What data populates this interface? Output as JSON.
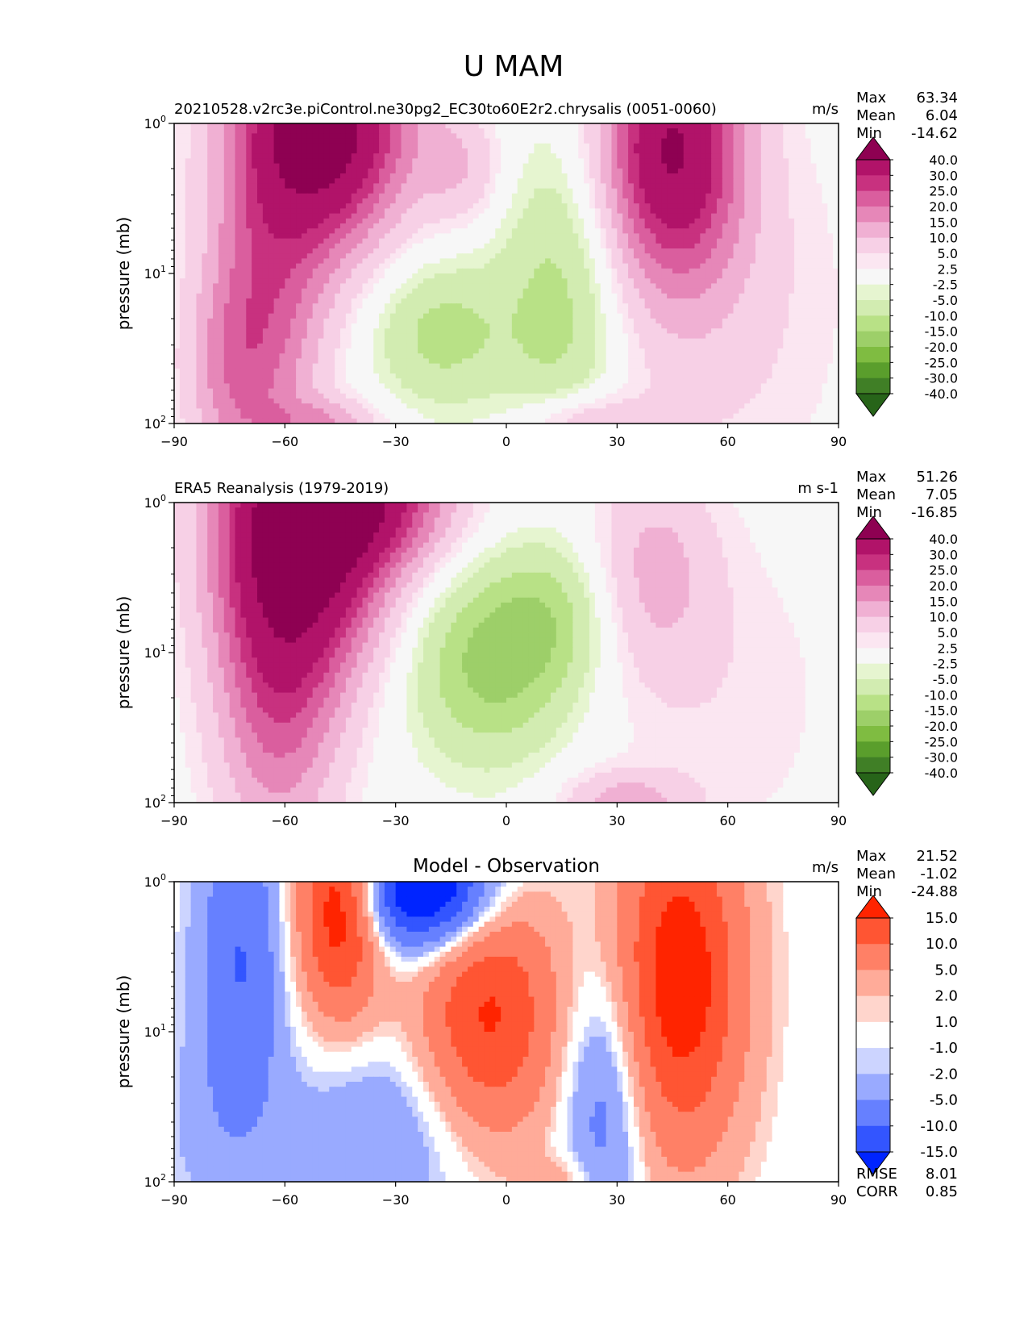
{
  "figure": {
    "title": "U MAM"
  },
  "chart_data": [
    {
      "type": "heatmap",
      "title": "20210528.v2rc3e.piControl.ne30pg2_EC30to60E2r2.chrysalis (0051-0060)",
      "units": "m/s",
      "xlabel": "",
      "ylabel": "pressure (mb)",
      "xlim": [
        -90,
        90
      ],
      "ylim": [
        100,
        1
      ],
      "yscale": "log",
      "xticks": [
        "−90",
        "−60",
        "−30",
        "0",
        "30",
        "60",
        "90"
      ],
      "yticks": [
        {
          "base": "10",
          "exp": "0",
          "value": 1
        },
        {
          "base": "10",
          "exp": "1",
          "value": 10
        },
        {
          "base": "10",
          "exp": "2",
          "value": 100
        }
      ],
      "stats": [
        {
          "label": "Max",
          "value": "63.34"
        },
        {
          "label": "Mean",
          "value": "6.04"
        },
        {
          "label": "Min",
          "value": "-14.62"
        }
      ],
      "colorbar": {
        "levels": [
          "40.0",
          "30.0",
          "25.0",
          "20.0",
          "15.0",
          "10.0",
          "5.0",
          "2.5",
          "-2.5",
          "-5.0",
          "-10.0",
          "-15.0",
          "-20.0",
          "-25.0",
          "-30.0",
          "-40.0"
        ],
        "colors": [
          "#8e0152",
          "#b11369",
          "#c8317f",
          "#da5e9e",
          "#e687b8",
          "#f0b0d3",
          "#f7d0e6",
          "#fbe6f1",
          "#f7f7f7",
          "#e6f5d0",
          "#d2ecb1",
          "#b8e186",
          "#9dcf69",
          "#7fbc41",
          "#5a9e2c",
          "#407f26",
          "#276419"
        ],
        "extend": "both"
      },
      "features": [
        {
          "lat": -50,
          "logp": 0.0,
          "value": 48,
          "sx": 16,
          "sy": 0.55
        },
        {
          "lat": -65,
          "logp": 1.2,
          "value": 20,
          "sx": 12,
          "sy": 0.7
        },
        {
          "lat": -75,
          "logp": 1.7,
          "value": 10,
          "sx": 9,
          "sy": 0.45
        },
        {
          "lat": -12,
          "logp": 0.3,
          "value": 9,
          "sx": 8,
          "sy": 0.28
        },
        {
          "lat": -18,
          "logp": 1.4,
          "value": -12,
          "sx": 13,
          "sy": 0.35
        },
        {
          "lat": 15,
          "logp": 1.2,
          "value": -13,
          "sx": 12,
          "sy": 0.75
        },
        {
          "lat": 45,
          "logp": 0.15,
          "value": 38,
          "sx": 13,
          "sy": 0.6
        },
        {
          "lat": 55,
          "logp": 1.2,
          "value": 7,
          "sx": 24,
          "sy": 0.9
        },
        {
          "lat": 20,
          "logp": 2.0,
          "value": 12,
          "sx": 12,
          "sy": 0.15
        },
        {
          "lat": -50,
          "logp": 2.0,
          "value": 12,
          "sx": 12,
          "sy": 0.12
        }
      ]
    },
    {
      "type": "heatmap",
      "title": "ERA5 Reanalysis (1979-2019)",
      "units": "m s-1",
      "xlabel": "",
      "ylabel": "pressure (mb)",
      "xlim": [
        -90,
        90
      ],
      "ylim": [
        100,
        1
      ],
      "yscale": "log",
      "xticks": [
        "−90",
        "−60",
        "−30",
        "0",
        "30",
        "60",
        "90"
      ],
      "yticks": [
        {
          "base": "10",
          "exp": "0",
          "value": 1
        },
        {
          "base": "10",
          "exp": "1",
          "value": 10
        },
        {
          "base": "10",
          "exp": "2",
          "value": 100
        }
      ],
      "stats": [
        {
          "label": "Max",
          "value": "51.26"
        },
        {
          "label": "Mean",
          "value": "7.05"
        },
        {
          "label": "Min",
          "value": "-16.85"
        }
      ],
      "colorbar": {
        "levels": [
          "40.0",
          "30.0",
          "25.0",
          "20.0",
          "15.0",
          "10.0",
          "5.0",
          "2.5",
          "-2.5",
          "-5.0",
          "-10.0",
          "-15.0",
          "-20.0",
          "-25.0",
          "-30.0",
          "-40.0"
        ],
        "colors": [
          "#8e0152",
          "#b11369",
          "#c8317f",
          "#da5e9e",
          "#e687b8",
          "#f0b0d3",
          "#f7d0e6",
          "#fbe6f1",
          "#f7f7f7",
          "#e6f5d0",
          "#d2ecb1",
          "#b8e186",
          "#9dcf69",
          "#7fbc41",
          "#5a9e2c",
          "#407f26",
          "#276419"
        ],
        "extend": "both"
      },
      "features": [
        {
          "lat": -55,
          "logp": 0.15,
          "value": 48,
          "sx": 16,
          "sy": 0.65
        },
        {
          "lat": -62,
          "logp": 1.3,
          "value": 20,
          "sx": 12,
          "sy": 0.75
        },
        {
          "lat": -35,
          "logp": 0.0,
          "value": 22,
          "sx": 16,
          "sy": 0.3
        },
        {
          "lat": -5,
          "logp": 1.1,
          "value": -16,
          "sx": 15,
          "sy": 0.45
        },
        {
          "lat": 12,
          "logp": 0.75,
          "value": -10,
          "sx": 12,
          "sy": 0.35
        },
        {
          "lat": 40,
          "logp": 0.45,
          "value": 11,
          "sx": 12,
          "sy": 0.5
        },
        {
          "lat": 60,
          "logp": 1.3,
          "value": 4,
          "sx": 22,
          "sy": 0.8
        },
        {
          "lat": 32,
          "logp": 2.0,
          "value": 12,
          "sx": 12,
          "sy": 0.15
        }
      ]
    },
    {
      "type": "heatmap",
      "title": "Model - Observation",
      "units": "m/s",
      "xlabel": "",
      "ylabel": "pressure (mb)",
      "xlim": [
        -90,
        90
      ],
      "ylim": [
        100,
        1
      ],
      "yscale": "log",
      "xticks": [
        "−90",
        "−60",
        "−30",
        "0",
        "30",
        "60",
        "90"
      ],
      "yticks": [
        {
          "base": "10",
          "exp": "0",
          "value": 1
        },
        {
          "base": "10",
          "exp": "1",
          "value": 10
        },
        {
          "base": "10",
          "exp": "2",
          "value": 100
        }
      ],
      "stats": [
        {
          "label": "Max",
          "value": "21.52"
        },
        {
          "label": "Mean",
          "value": "-1.02"
        },
        {
          "label": "Min",
          "value": "-24.88"
        }
      ],
      "metrics": [
        {
          "label": "RMSE",
          "value": "8.01"
        },
        {
          "label": "CORR",
          "value": "0.85"
        }
      ],
      "colorbar": {
        "levels": [
          "15.0",
          "10.0",
          "5.0",
          "2.0",
          "1.0",
          "-1.0",
          "-2.0",
          "-5.0",
          "-10.0",
          "-15.0"
        ],
        "colors": [
          "#ff2400",
          "#ff5533",
          "#ff8066",
          "#ffab99",
          "#ffd5cc",
          "#ffffff",
          "#ccd4ff",
          "#99aaff",
          "#6680ff",
          "#3355ff",
          "#0024ff"
        ],
        "extend": "both"
      },
      "features": [
        {
          "lat": -72,
          "logp": 0.5,
          "value": -10,
          "sx": 8,
          "sy": 0.7
        },
        {
          "lat": -45,
          "logp": 0.15,
          "value": 20,
          "sx": 8,
          "sy": 0.5
        },
        {
          "lat": -22,
          "logp": 0.05,
          "value": -24,
          "sx": 13,
          "sy": 0.28
        },
        {
          "lat": -5,
          "logp": 0.9,
          "value": 16,
          "sx": 13,
          "sy": 0.6
        },
        {
          "lat": 47,
          "logp": 0.65,
          "value": 19,
          "sx": 12,
          "sy": 0.8
        },
        {
          "lat": 27,
          "logp": 1.45,
          "value": -8,
          "sx": 8,
          "sy": 0.65
        },
        {
          "lat": -30,
          "logp": 1.65,
          "value": -5,
          "sx": 20,
          "sy": 0.45
        },
        {
          "lat": -78,
          "logp": 1.65,
          "value": -2.5,
          "sx": 12,
          "sy": 0.5
        },
        {
          "lat": 15,
          "logp": 2.0,
          "value": 4,
          "sx": 7,
          "sy": 0.12
        }
      ]
    }
  ]
}
